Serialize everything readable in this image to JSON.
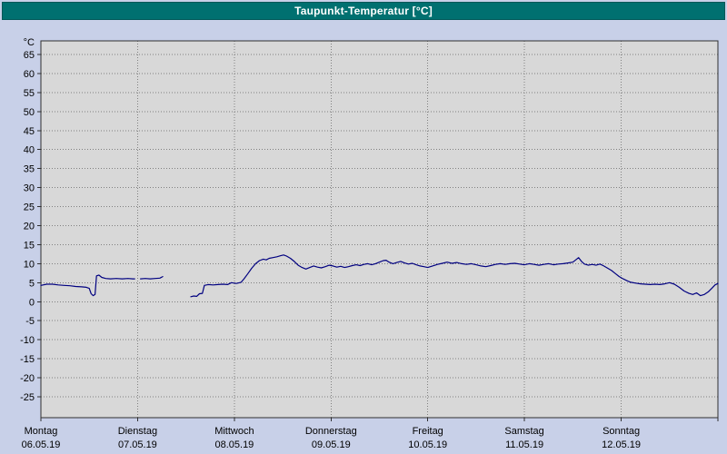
{
  "window": {
    "title": "Taupunkt-Temperatur [°C]"
  },
  "colors": {
    "titlebar_bg": "#007070",
    "titlebar_text": "#ffffff",
    "window_bg": "#c8d0e8",
    "plot_bg": "#d8d8d8",
    "grid": "#808080",
    "border": "#303030",
    "line": "#000080",
    "label_text": "#000000"
  },
  "chart_data": {
    "type": "line",
    "title": "Taupunkt-Temperatur [°C]",
    "ylabel": "°C",
    "xlabel": "",
    "ylim": [
      -30.5,
      68.5
    ],
    "y_ticks": [
      65,
      60,
      55,
      50,
      45,
      40,
      35,
      30,
      25,
      20,
      15,
      10,
      5,
      0,
      -5,
      -10,
      -15,
      -20,
      -25
    ],
    "grid": "dotted",
    "legend_position": "none",
    "x_unit": "days since Montag 06.05.19 00:00",
    "x_range_days": [
      0,
      7
    ],
    "x_categories": [
      {
        "weekday": "Montag",
        "date": "06.05.19"
      },
      {
        "weekday": "Dienstag",
        "date": "07.05.19"
      },
      {
        "weekday": "Mittwoch",
        "date": "08.05.19"
      },
      {
        "weekday": "Donnerstag",
        "date": "09.05.19"
      },
      {
        "weekday": "Freitag",
        "date": "10.05.19"
      },
      {
        "weekday": "Samstag",
        "date": "11.05.19"
      },
      {
        "weekday": "Sonntag",
        "date": "12.05.19"
      }
    ],
    "series": [
      {
        "name": "Taupunkt-Temperatur",
        "color": "#000080",
        "unit": "°C",
        "segments": [
          {
            "points": [
              [
                0.0,
                4.3
              ],
              [
                0.06,
                4.6
              ],
              [
                0.12,
                4.6
              ],
              [
                0.18,
                4.4
              ],
              [
                0.24,
                4.3
              ],
              [
                0.3,
                4.2
              ],
              [
                0.36,
                4.0
              ],
              [
                0.42,
                3.9
              ],
              [
                0.47,
                3.8
              ],
              [
                0.5,
                3.5
              ],
              [
                0.52,
                2.1
              ],
              [
                0.54,
                1.6
              ],
              [
                0.56,
                1.9
              ],
              [
                0.575,
                6.8
              ],
              [
                0.6,
                7.0
              ],
              [
                0.63,
                6.4
              ],
              [
                0.67,
                6.1
              ],
              [
                0.72,
                6.0
              ],
              [
                0.78,
                6.1
              ],
              [
                0.84,
                6.0
              ],
              [
                0.9,
                6.1
              ],
              [
                0.95,
                6.0
              ],
              [
                0.97,
                6.0
              ]
            ]
          },
          {
            "points": [
              [
                1.03,
                6.0
              ],
              [
                1.08,
                6.1
              ],
              [
                1.13,
                6.0
              ],
              [
                1.18,
                6.1
              ],
              [
                1.23,
                6.2
              ],
              [
                1.26,
                6.6
              ]
            ]
          },
          {
            "points": [
              [
                1.55,
                1.3
              ],
              [
                1.58,
                1.5
              ],
              [
                1.61,
                1.4
              ],
              [
                1.64,
                2.1
              ],
              [
                1.67,
                2.2
              ],
              [
                1.69,
                4.3
              ],
              [
                1.73,
                4.5
              ],
              [
                1.78,
                4.4
              ],
              [
                1.83,
                4.5
              ],
              [
                1.88,
                4.6
              ],
              [
                1.93,
                4.5
              ],
              [
                1.97,
                5.0
              ],
              [
                2.02,
                4.8
              ],
              [
                2.07,
                5.1
              ],
              [
                2.1,
                6.0
              ],
              [
                2.14,
                7.4
              ],
              [
                2.18,
                8.8
              ],
              [
                2.22,
                10.0
              ],
              [
                2.26,
                10.8
              ],
              [
                2.3,
                11.2
              ],
              [
                2.33,
                11.0
              ],
              [
                2.36,
                11.4
              ],
              [
                2.4,
                11.6
              ],
              [
                2.44,
                11.8
              ],
              [
                2.48,
                12.1
              ],
              [
                2.51,
                12.3
              ],
              [
                2.54,
                12.0
              ],
              [
                2.58,
                11.4
              ],
              [
                2.62,
                10.6
              ],
              [
                2.66,
                9.6
              ],
              [
                2.7,
                9.0
              ],
              [
                2.74,
                8.6
              ],
              [
                2.78,
                9.0
              ],
              [
                2.82,
                9.4
              ],
              [
                2.86,
                9.1
              ],
              [
                2.9,
                8.9
              ],
              [
                2.94,
                9.2
              ],
              [
                2.98,
                9.6
              ],
              [
                3.02,
                9.4
              ],
              [
                3.06,
                9.1
              ],
              [
                3.1,
                9.3
              ],
              [
                3.14,
                9.0
              ],
              [
                3.18,
                9.2
              ],
              [
                3.22,
                9.5
              ],
              [
                3.26,
                9.7
              ],
              [
                3.3,
                9.5
              ],
              [
                3.34,
                9.8
              ],
              [
                3.38,
                10.0
              ],
              [
                3.42,
                9.7
              ],
              [
                3.46,
                10.0
              ],
              [
                3.5,
                10.4
              ],
              [
                3.54,
                10.8
              ],
              [
                3.57,
                10.9
              ],
              [
                3.6,
                10.4
              ],
              [
                3.64,
                10.0
              ],
              [
                3.68,
                10.3
              ],
              [
                3.72,
                10.6
              ],
              [
                3.76,
                10.2
              ],
              [
                3.8,
                9.9
              ],
              [
                3.84,
                10.1
              ],
              [
                3.88,
                9.7
              ],
              [
                3.92,
                9.4
              ],
              [
                3.96,
                9.2
              ],
              [
                4.0,
                9.0
              ],
              [
                4.05,
                9.4
              ],
              [
                4.1,
                9.8
              ],
              [
                4.15,
                10.1
              ],
              [
                4.2,
                10.4
              ],
              [
                4.25,
                10.1
              ],
              [
                4.3,
                10.3
              ],
              [
                4.35,
                10.0
              ],
              [
                4.4,
                9.8
              ],
              [
                4.45,
                10.0
              ],
              [
                4.5,
                9.7
              ],
              [
                4.55,
                9.4
              ],
              [
                4.6,
                9.2
              ],
              [
                4.65,
                9.5
              ],
              [
                4.7,
                9.8
              ],
              [
                4.75,
                10.0
              ],
              [
                4.8,
                9.8
              ],
              [
                4.85,
                10.0
              ],
              [
                4.9,
                10.1
              ],
              [
                4.95,
                9.9
              ],
              [
                5.0,
                9.7
              ],
              [
                5.05,
                10.0
              ],
              [
                5.1,
                9.8
              ],
              [
                5.15,
                9.6
              ],
              [
                5.2,
                9.8
              ],
              [
                5.25,
                10.0
              ],
              [
                5.3,
                9.7
              ],
              [
                5.35,
                9.9
              ],
              [
                5.4,
                10.0
              ],
              [
                5.45,
                10.2
              ],
              [
                5.5,
                10.4
              ],
              [
                5.53,
                11.0
              ],
              [
                5.56,
                11.6
              ],
              [
                5.59,
                10.6
              ],
              [
                5.62,
                9.9
              ],
              [
                5.66,
                9.6
              ],
              [
                5.7,
                9.8
              ],
              [
                5.74,
                9.6
              ],
              [
                5.78,
                9.9
              ],
              [
                5.82,
                9.4
              ],
              [
                5.86,
                8.8
              ],
              [
                5.9,
                8.2
              ],
              [
                5.94,
                7.4
              ],
              [
                5.98,
                6.6
              ],
              [
                6.02,
                6.0
              ],
              [
                6.06,
                5.5
              ],
              [
                6.1,
                5.1
              ],
              [
                6.15,
                4.9
              ],
              [
                6.2,
                4.7
              ],
              [
                6.25,
                4.6
              ],
              [
                6.3,
                4.5
              ],
              [
                6.35,
                4.6
              ],
              [
                6.4,
                4.5
              ],
              [
                6.45,
                4.7
              ],
              [
                6.5,
                5.0
              ],
              [
                6.55,
                4.6
              ],
              [
                6.6,
                3.8
              ],
              [
                6.65,
                2.8
              ],
              [
                6.7,
                2.2
              ],
              [
                6.74,
                1.9
              ],
              [
                6.78,
                2.3
              ],
              [
                6.82,
                1.6
              ],
              [
                6.86,
                1.9
              ],
              [
                6.9,
                2.6
              ],
              [
                6.94,
                3.6
              ],
              [
                6.97,
                4.4
              ],
              [
                7.0,
                4.8
              ]
            ]
          }
        ]
      }
    ]
  }
}
